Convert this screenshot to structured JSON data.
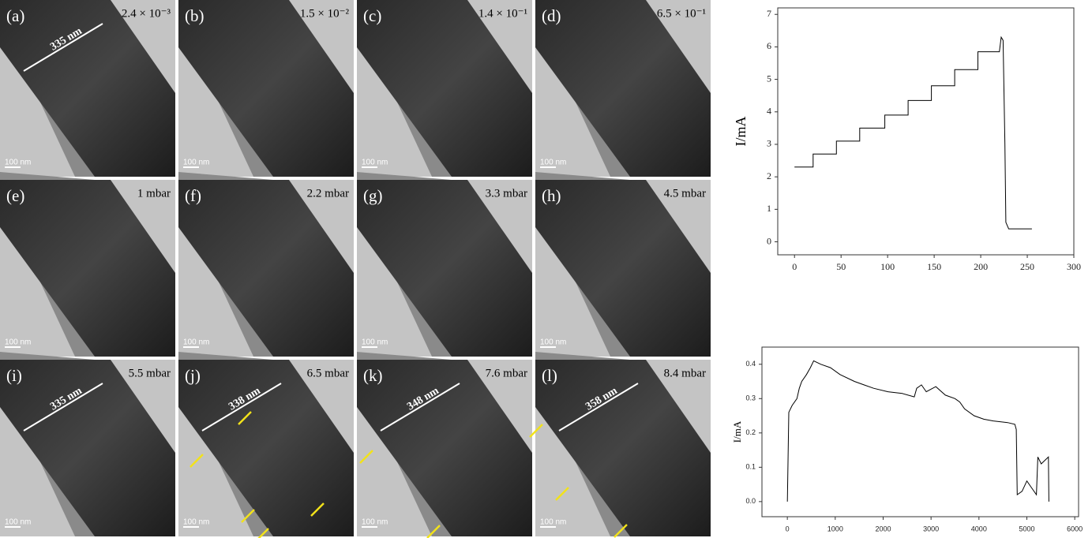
{
  "panels": [
    {
      "label": "(a)",
      "condition": "2.4 × 10⁻³",
      "scale_bar": "100 nm",
      "measurement": "335 nm"
    },
    {
      "label": "(b)",
      "condition": "1.5 × 10⁻²",
      "scale_bar": "100 nm"
    },
    {
      "label": "(c)",
      "condition": "1.4 × 10⁻¹",
      "scale_bar": "100 nm"
    },
    {
      "label": "(d)",
      "condition": "6.5 × 10⁻¹",
      "scale_bar": "100 nm"
    },
    {
      "label": "(e)",
      "condition": "1 mbar",
      "scale_bar": "100 nm"
    },
    {
      "label": "(f)",
      "condition": "2.2 mbar",
      "scale_bar": "100 nm"
    },
    {
      "label": "(g)",
      "condition": "3.3 mbar",
      "scale_bar": "100 nm"
    },
    {
      "label": "(h)",
      "condition": "4.5 mbar",
      "scale_bar": "100 nm"
    },
    {
      "label": "(i)",
      "condition": "5.5 mbar",
      "scale_bar": "100 nm",
      "measurement": "335 nm"
    },
    {
      "label": "(j)",
      "condition": "6.5 mbar",
      "scale_bar": "100 nm",
      "measurement": "338 nm"
    },
    {
      "label": "(k)",
      "condition": "7.6 mbar",
      "scale_bar": "100 nm",
      "measurement": "348 nm"
    },
    {
      "label": "(l)",
      "condition": "8.4 mbar",
      "scale_bar": "100 nm",
      "measurement": "358 nm"
    }
  ],
  "chart_data": [
    {
      "type": "line",
      "y_label": "I/mA",
      "x": [
        0,
        20,
        20,
        45,
        45,
        70,
        70,
        97,
        97,
        122,
        122,
        147,
        147,
        172,
        172,
        197,
        197,
        220,
        222,
        224,
        226,
        227,
        230,
        255
      ],
      "series": [
        {
          "color": "#000000",
          "values": [
            2.3,
            2.3,
            2.7,
            2.7,
            3.1,
            3.1,
            3.5,
            3.5,
            3.9,
            3.9,
            4.35,
            4.35,
            4.8,
            4.8,
            5.3,
            5.3,
            5.85,
            5.85,
            6.3,
            6.2,
            3.0,
            0.6,
            0.4,
            0.4
          ]
        }
      ],
      "xlim": [
        -18,
        300
      ],
      "ylim": [
        -0.4,
        7.2
      ],
      "xticks": [
        0,
        50,
        100,
        150,
        200,
        250,
        300
      ],
      "yticks": [
        0,
        1,
        2,
        3,
        4,
        5,
        6,
        7
      ]
    },
    {
      "type": "line",
      "y_label": "I/mA",
      "x": [
        0,
        30,
        100,
        200,
        250,
        300,
        400,
        480,
        550,
        700,
        900,
        1100,
        1400,
        1600,
        1800,
        2100,
        2400,
        2650,
        2700,
        2800,
        2900,
        3100,
        3300,
        3500,
        3600,
        3700,
        3900,
        4100,
        4300,
        4600,
        4750,
        4780,
        4800,
        4900,
        5000,
        5100,
        5200,
        5230,
        5300,
        5450,
        5460
      ],
      "series": [
        {
          "color": "#000000",
          "values": [
            0.0,
            0.26,
            0.28,
            0.3,
            0.33,
            0.35,
            0.37,
            0.39,
            0.41,
            0.4,
            0.39,
            0.37,
            0.35,
            0.34,
            0.33,
            0.32,
            0.315,
            0.305,
            0.33,
            0.34,
            0.32,
            0.335,
            0.31,
            0.3,
            0.29,
            0.27,
            0.25,
            0.24,
            0.235,
            0.23,
            0.225,
            0.21,
            0.02,
            0.03,
            0.06,
            0.04,
            0.02,
            0.13,
            0.11,
            0.13,
            0.0
          ]
        }
      ],
      "xlim": [
        -530,
        6080
      ],
      "ylim": [
        -0.044,
        0.45
      ],
      "xticks": [
        0,
        1000,
        2000,
        3000,
        4000,
        5000,
        6000
      ],
      "yticks": [
        {
          "value": 0,
          "label": "0.0"
        },
        0.1,
        0.2,
        0.3,
        0.4
      ]
    }
  ]
}
